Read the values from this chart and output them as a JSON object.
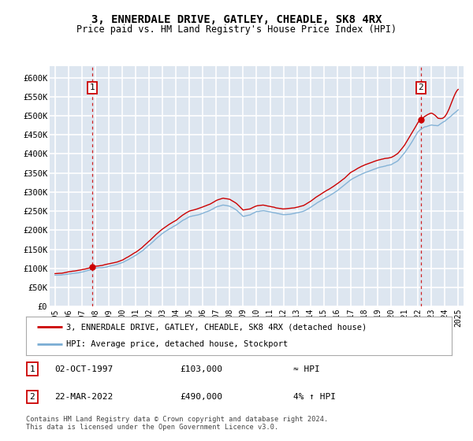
{
  "title": "3, ENNERDALE DRIVE, GATLEY, CHEADLE, SK8 4RX",
  "subtitle": "Price paid vs. HM Land Registry's House Price Index (HPI)",
  "ylabel_ticks": [
    "£0",
    "£50K",
    "£100K",
    "£150K",
    "£200K",
    "£250K",
    "£300K",
    "£350K",
    "£400K",
    "£450K",
    "£500K",
    "£550K",
    "£600K"
  ],
  "ytick_values": [
    0,
    50000,
    100000,
    150000,
    200000,
    250000,
    300000,
    350000,
    400000,
    450000,
    500000,
    550000,
    600000
  ],
  "ylim": [
    0,
    630000
  ],
  "xlim_start": 1994.6,
  "xlim_end": 2025.4,
  "xtick_years": [
    1995,
    1996,
    1997,
    1998,
    1999,
    2000,
    2001,
    2002,
    2003,
    2004,
    2005,
    2006,
    2007,
    2008,
    2009,
    2010,
    2011,
    2012,
    2013,
    2014,
    2015,
    2016,
    2017,
    2018,
    2019,
    2020,
    2021,
    2022,
    2023,
    2024,
    2025
  ],
  "sale1_x": 1997.75,
  "sale1_y": 103000,
  "sale2_x": 2022.22,
  "sale2_y": 490000,
  "hpi_color": "#7aadd4",
  "property_color": "#cc0000",
  "bg_color": "#dde6f0",
  "legend_label1": "3, ENNERDALE DRIVE, GATLEY, CHEADLE, SK8 4RX (detached house)",
  "legend_label2": "HPI: Average price, detached house, Stockport",
  "annotation1_label": "1",
  "annotation2_label": "2",
  "table_row1": [
    "1",
    "02-OCT-1997",
    "£103,000",
    "≈ HPI"
  ],
  "table_row2": [
    "2",
    "22-MAR-2022",
    "£490,000",
    "4% ↑ HPI"
  ],
  "footnote": "Contains HM Land Registry data © Crown copyright and database right 2024.\nThis data is licensed under the Open Government Licence v3.0.",
  "grid_color": "#ffffff",
  "vline_color": "#cc0000",
  "hpi_segments": [
    [
      1995.0,
      82000
    ],
    [
      1995.5,
      83000
    ],
    [
      1996.0,
      86000
    ],
    [
      1996.5,
      88000
    ],
    [
      1997.0,
      91000
    ],
    [
      1997.5,
      95000
    ],
    [
      1997.75,
      98000
    ],
    [
      1998.0,
      100000
    ],
    [
      1998.5,
      102000
    ],
    [
      1999.0,
      106000
    ],
    [
      1999.5,
      110000
    ],
    [
      2000.0,
      116000
    ],
    [
      2000.5,
      125000
    ],
    [
      2001.0,
      135000
    ],
    [
      2001.5,
      147000
    ],
    [
      2002.0,
      162000
    ],
    [
      2002.5,
      178000
    ],
    [
      2003.0,
      193000
    ],
    [
      2003.5,
      205000
    ],
    [
      2004.0,
      215000
    ],
    [
      2004.5,
      228000
    ],
    [
      2005.0,
      238000
    ],
    [
      2005.5,
      242000
    ],
    [
      2006.0,
      248000
    ],
    [
      2006.5,
      255000
    ],
    [
      2007.0,
      265000
    ],
    [
      2007.5,
      270000
    ],
    [
      2008.0,
      268000
    ],
    [
      2008.5,
      258000
    ],
    [
      2009.0,
      242000
    ],
    [
      2009.5,
      245000
    ],
    [
      2010.0,
      253000
    ],
    [
      2010.5,
      255000
    ],
    [
      2011.0,
      252000
    ],
    [
      2011.5,
      248000
    ],
    [
      2012.0,
      245000
    ],
    [
      2012.5,
      247000
    ],
    [
      2013.0,
      250000
    ],
    [
      2013.5,
      255000
    ],
    [
      2014.0,
      265000
    ],
    [
      2014.5,
      277000
    ],
    [
      2015.0,
      288000
    ],
    [
      2015.5,
      298000
    ],
    [
      2016.0,
      310000
    ],
    [
      2016.5,
      323000
    ],
    [
      2017.0,
      338000
    ],
    [
      2017.5,
      348000
    ],
    [
      2018.0,
      356000
    ],
    [
      2018.5,
      362000
    ],
    [
      2019.0,
      368000
    ],
    [
      2019.5,
      372000
    ],
    [
      2020.0,
      375000
    ],
    [
      2020.5,
      385000
    ],
    [
      2021.0,
      405000
    ],
    [
      2021.5,
      432000
    ],
    [
      2022.0,
      462000
    ],
    [
      2022.22,
      470000
    ],
    [
      2022.5,
      475000
    ],
    [
      2023.0,
      480000
    ],
    [
      2023.5,
      478000
    ],
    [
      2024.0,
      490000
    ],
    [
      2024.5,
      505000
    ],
    [
      2025.0,
      520000
    ]
  ]
}
